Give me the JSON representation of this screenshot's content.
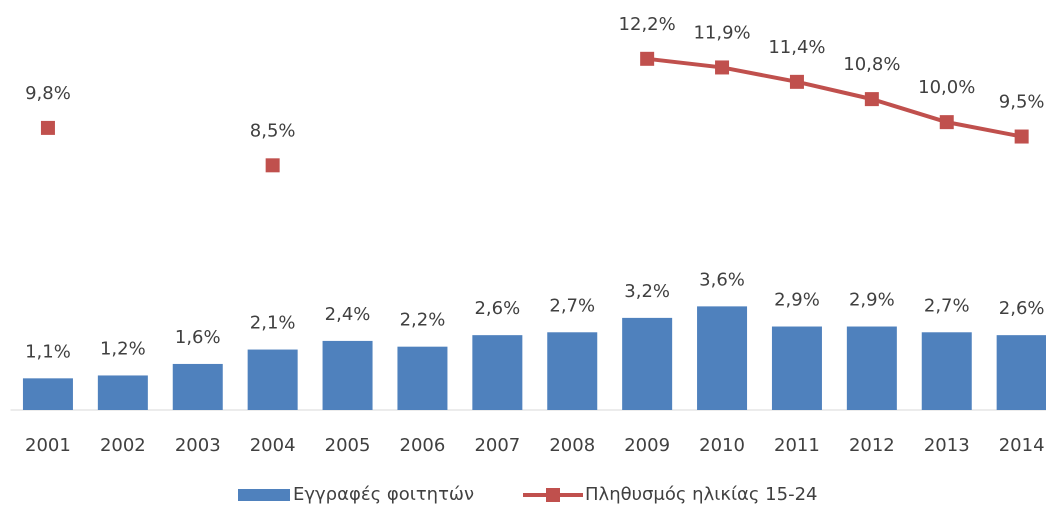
{
  "chart_data": {
    "type": "bar-line",
    "categories": [
      "2001",
      "2002",
      "2003",
      "2004",
      "2005",
      "2006",
      "2007",
      "2008",
      "2009",
      "2010",
      "2011",
      "2012",
      "2013",
      "2014"
    ],
    "series": [
      {
        "name": "Εγγραφές φοιτητών",
        "type": "bar",
        "color": "#4f81bd",
        "values": [
          1.1,
          1.2,
          1.6,
          2.1,
          2.4,
          2.2,
          2.6,
          2.7,
          3.2,
          3.6,
          2.9,
          2.9,
          2.7,
          2.6
        ],
        "value_labels": [
          "1,1%",
          "1,2%",
          "1,6%",
          "2,1%",
          "2,4%",
          "2,2%",
          "2,6%",
          "2,7%",
          "3,2%",
          "3,6%",
          "2,9%",
          "2,9%",
          "2,7%",
          "2,6%"
        ]
      },
      {
        "name": "Πληθυσμός ηλικίας 15-24",
        "type": "line",
        "color": "#c0504d",
        "values": [
          9.8,
          null,
          null,
          8.5,
          null,
          null,
          null,
          null,
          12.2,
          11.9,
          11.4,
          10.8,
          10.0,
          9.5
        ],
        "value_labels": [
          "9,8%",
          null,
          null,
          "8,5%",
          null,
          null,
          null,
          null,
          "12,2%",
          "11,9%",
          "11,4%",
          "10,8%",
          "10,0%",
          "9,5%"
        ]
      }
    ],
    "ylim": [
      0,
      14
    ],
    "legend": "bottom"
  }
}
